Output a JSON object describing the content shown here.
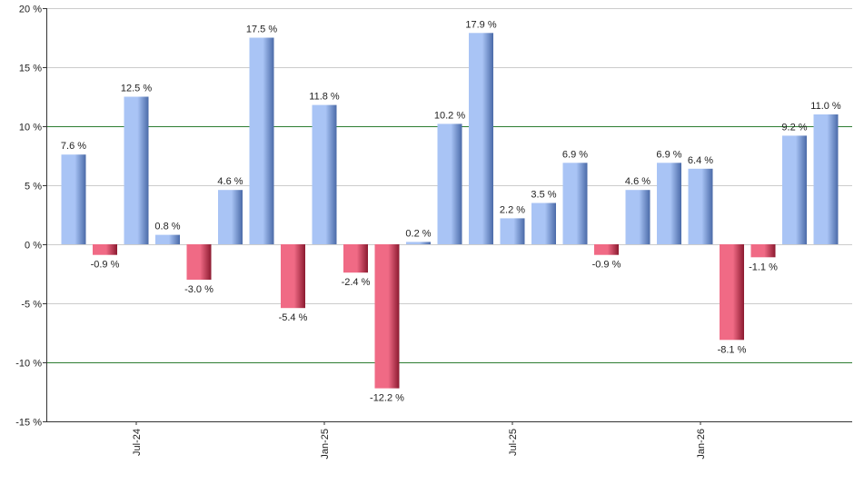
{
  "chart_data": {
    "type": "bar",
    "title": "",
    "xlabel": "",
    "ylabel": "",
    "ylim": [
      -15,
      20
    ],
    "yticks": [
      -15,
      -10,
      -5,
      0,
      5,
      10,
      15,
      20
    ],
    "ytick_labels": [
      "-15 %",
      "-10 %",
      "-5 %",
      "0 %",
      "5 %",
      "10 %",
      "15 %",
      "20 %"
    ],
    "highlight_lines": [
      10,
      -10
    ],
    "x_tick_labels": [
      {
        "index": 2,
        "label": "Jul-24"
      },
      {
        "index": 8,
        "label": "Jan-25"
      },
      {
        "index": 14,
        "label": "Jul-25"
      },
      {
        "index": 20,
        "label": "Jan-26"
      }
    ],
    "values": [
      7.6,
      -0.9,
      12.5,
      0.8,
      -3.0,
      4.6,
      17.5,
      -5.4,
      11.8,
      -2.4,
      -12.2,
      0.2,
      10.2,
      17.9,
      2.2,
      3.5,
      6.9,
      -0.9,
      4.6,
      6.9,
      6.4,
      -8.1,
      -1.1,
      9.2,
      11.0
    ],
    "value_labels": [
      "7.6 %",
      "-0.9 %",
      "12.5 %",
      "0.8 %",
      "-3.0 %",
      "4.6 %",
      "17.5 %",
      "-5.4 %",
      "11.8 %",
      "-2.4 %",
      "-12.2 %",
      "0.2 %",
      "10.2 %",
      "17.9 %",
      "2.2 %",
      "3.5 %",
      "6.9 %",
      "-0.9 %",
      "4.6 %",
      "6.9 %",
      "6.4 %",
      "-8.1 %",
      "-1.1 %",
      "9.2 %",
      "11.0 %"
    ],
    "colors": {
      "positive_light": "#a9c4f5",
      "positive_dark": "#4a6aa8",
      "negative_light": "#f06a85",
      "negative_dark": "#8c1a30",
      "grid": "#cccccc",
      "highlight": "#2e7d32",
      "axis": "#333333"
    },
    "grid": true
  }
}
